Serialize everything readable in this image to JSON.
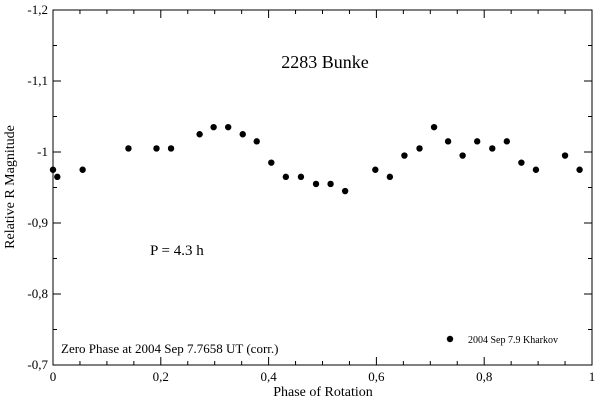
{
  "chart_data": {
    "type": "scatter",
    "title": "2283 Bunke",
    "xlabel": "Phase of Rotation",
    "ylabel": "Relative R Magnitude",
    "xlim": [
      0,
      1
    ],
    "ylim": [
      -0.7,
      -1.2
    ],
    "y_inverted": true,
    "grid": false,
    "x_ticks": [
      0,
      0.2,
      0.4,
      0.6,
      0.8,
      1
    ],
    "x_tick_labels": [
      "0",
      "0,2",
      "0,4",
      "0,6",
      "0,8",
      "1"
    ],
    "y_ticks": [
      -1.2,
      -1.1,
      -1.0,
      -0.9,
      -0.8,
      -0.7
    ],
    "y_tick_labels": [
      "-1,2",
      "-1,1",
      "-1",
      "-0,9",
      "-0,8",
      "-0,7"
    ],
    "annotations": {
      "period": "P = 4.3 h",
      "zero_phase": "Zero Phase at 2004 Sep 7.7658 UT (corr.)"
    },
    "legend_position": "bottom-right",
    "series": [
      {
        "name": "2004 Sep 7.9 Kharkov",
        "color": "#000000",
        "marker": "filled-circle",
        "x": [
          0.0,
          0.008,
          0.055,
          0.14,
          0.192,
          0.219,
          0.272,
          0.298,
          0.325,
          0.352,
          0.378,
          0.405,
          0.432,
          0.46,
          0.488,
          0.515,
          0.542,
          0.598,
          0.625,
          0.652,
          0.68,
          0.707,
          0.733,
          0.76,
          0.787,
          0.815,
          0.842,
          0.869,
          0.896,
          0.95,
          0.977
        ],
        "y": [
          -0.975,
          -0.965,
          -0.975,
          -1.005,
          -1.005,
          -1.005,
          -1.025,
          -1.035,
          -1.035,
          -1.025,
          -1.015,
          -0.985,
          -0.965,
          -0.965,
          -0.955,
          -0.955,
          -0.945,
          -0.975,
          -0.965,
          -0.995,
          -1.005,
          -1.035,
          -1.015,
          -0.995,
          -1.015,
          -1.005,
          -1.015,
          -0.985,
          -0.975,
          -0.995,
          -0.975
        ]
      }
    ]
  }
}
